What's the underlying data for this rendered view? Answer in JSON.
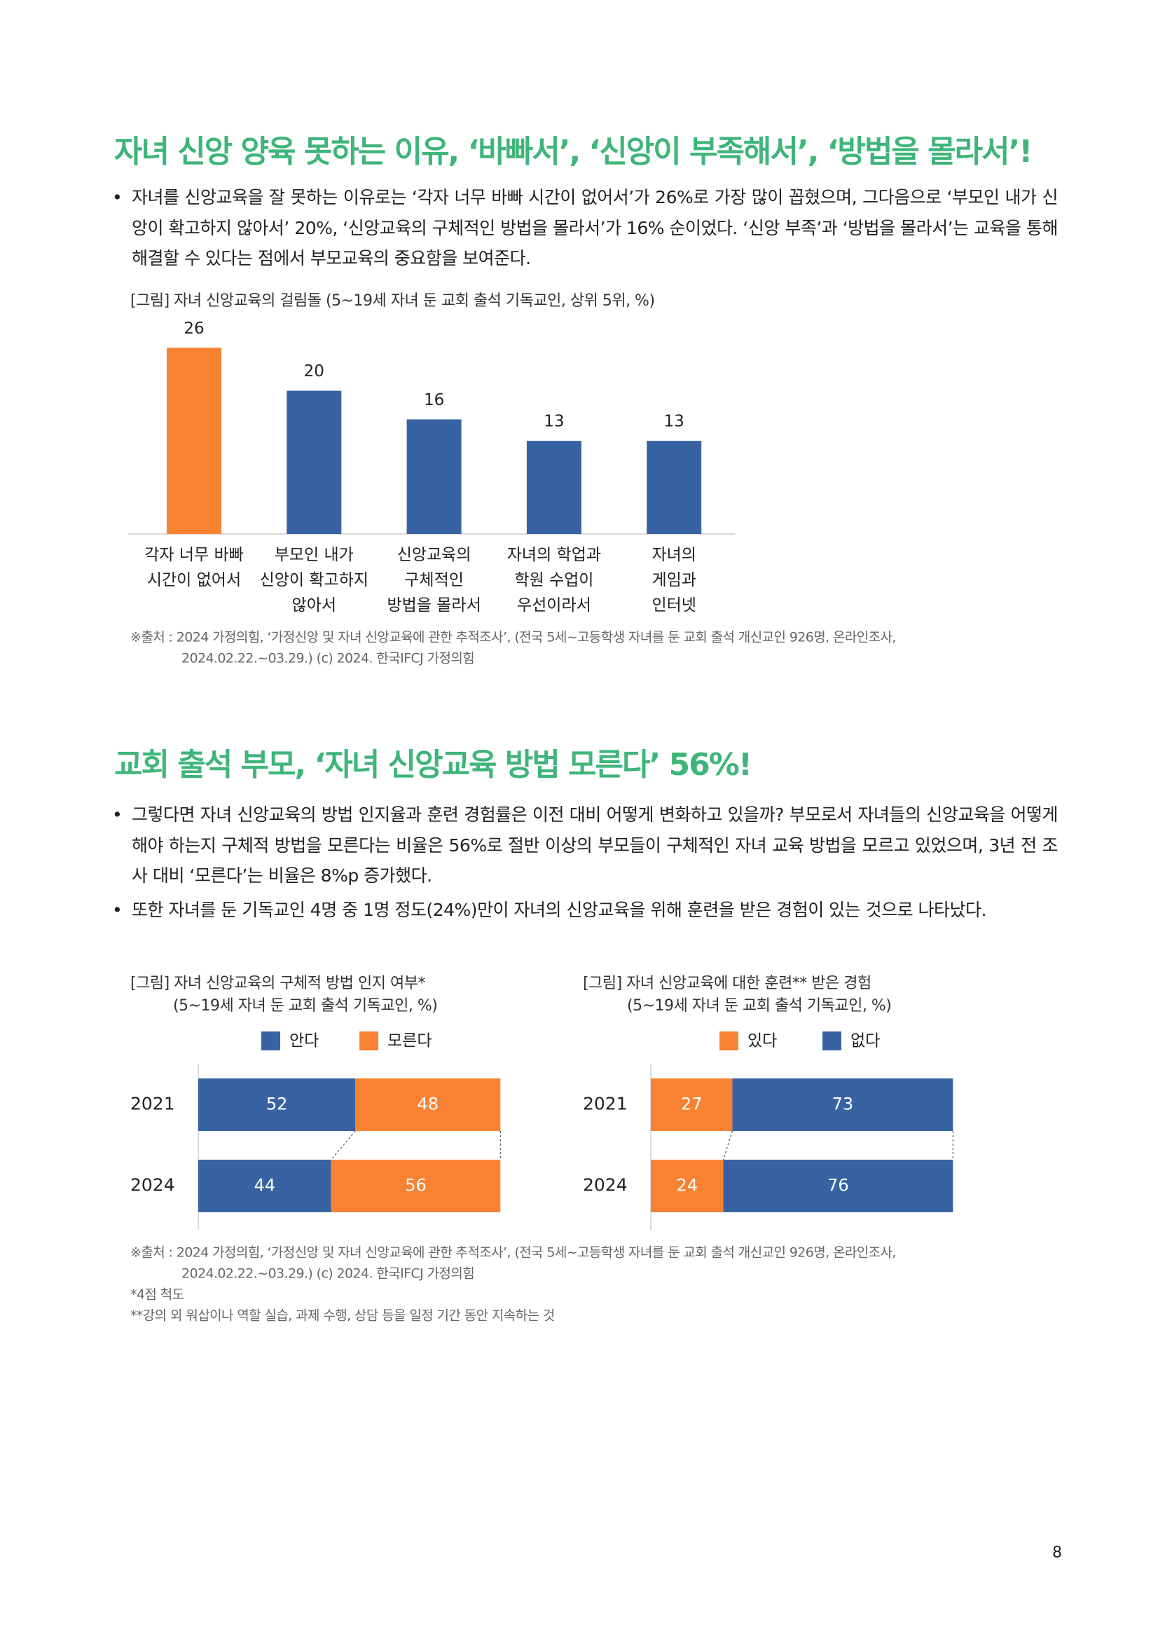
{
  "document": {
    "sections": [
      {
        "title": "자녀 신앙 양육 못하는 이유, ‘바빠서’, ‘신앙이 부족해서’, ‘방법을 몰라서’!",
        "bullets": [
          "자녀를 신앙교육을 잘 못하는 이유로는 ‘각자 너무 바빠 시간이 없어서’가 26%로 가장 많이 꼽혔으며, 그다음으로 ‘부모인 내가 신앙이 확고하지 않아서’ 20%, ‘신앙교육의 구체적인 방법을 몰라서’가 16% 순이었다. ‘신앙 부족’과 ‘방법을 몰라서’는 교육을 통해 해결할 수 있다는 점에서 부모교육의 중요함을 보여준다."
        ],
        "source": [
          "※출처 : 2024 가정의힘, ‘가정신앙 및 자녀 신앙교육에 관한 추적조사’, (전국 5세~고등학생 자녀를 둔 교회 출석 개신교인 926명, 온라인조사,",
          "2024.02.22.~03.29.) (c) 2024. 한국IFCJ 가정의힘"
        ]
      },
      {
        "title": "교회 출석 부모, ‘자녀 신앙교육 방법 모른다’ 56%!",
        "bullets": [
          "그렇다면 자녀 신앙교육의 방법 인지율과 훈련 경험률은 이전 대비 어떻게 변화하고 있을까? 부모로서 자녀들의 신앙교육을 어떻게 해야 하는지 구체적 방법을 모른다는 비율은 56%로 절반 이상의 부모들이 구체적인 자녀 교육 방법을 모르고 있었으며, 3년 전 조사 대비 ‘모른다’는 비율은 8%p 증가했다.",
          "또한 자녀를 둔 기독교인 4명 중 1명 정도(24%)만이 자녀의 신앙교육을 위해 훈련을 받은 경험이 있는 것으로 나타났다."
        ],
        "source": [
          "※출처 : 2024 가정의힘, ‘가정신앙 및 자녀 신앙교육에 관한 추적조사’, (전국 5세~고등학생 자녀를 둔 교회 출석 개신교인 926명, 온라인조사,",
          "2024.02.22.~03.29.) (c) 2024. 한국IFCJ 가정의힘"
        ],
        "notes": [
          "*4점 척도",
          "**강의 외 워삽이나 역할 실습, 과제 수행, 상담 등을 일정 기간 동안 지속하는 것"
        ]
      }
    ],
    "page_number": "8"
  },
  "chart_data": [
    {
      "type": "bar",
      "title": "[그림] 자녀 신앙교육의 걸림돌 (5~19세 자녀 둔 교회 출석 기독교인, 상위 5위, %)",
      "categories": [
        "각자 너무 바빠\n시간이 없어서",
        "부모인 내가\n신앙이 확고하지\n않아서",
        "신앙교육의\n구체적인\n방법을 몰라서",
        "자녀의 학업과\n학원 수업이\n우선이라서",
        "자녀의\n게임과\n인터넷"
      ],
      "values": [
        26,
        20,
        16,
        13,
        13
      ],
      "colors": [
        "#f98232",
        "#3763a2",
        "#3763a2",
        "#3763a2",
        "#3763a2"
      ]
    },
    {
      "type": "bar",
      "orientation": "horizontal",
      "stacked": true,
      "title": "[그림] 자녀 신앙교육의 구체적 방법 인지 여부*",
      "subtitle": "(5~19세 자녀 둔 교회 출석 기독교인, %)",
      "categories": [
        "2021",
        "2024"
      ],
      "series": [
        {
          "name": "안다",
          "color": "#3763a2",
          "values": [
            52,
            44
          ]
        },
        {
          "name": "모른다",
          "color": "#f98232",
          "values": [
            48,
            56
          ]
        }
      ]
    },
    {
      "type": "bar",
      "orientation": "horizontal",
      "stacked": true,
      "title": "[그림] 자녀 신앙교육에 대한 훈련** 받은 경험",
      "subtitle": "(5~19세 자녀 둔 교회 출석 기독교인, %)",
      "categories": [
        "2021",
        "2024"
      ],
      "series": [
        {
          "name": "있다",
          "color": "#f98232",
          "values": [
            27,
            24
          ]
        },
        {
          "name": "없다",
          "color": "#3763a2",
          "values": [
            73,
            76
          ]
        }
      ]
    }
  ]
}
